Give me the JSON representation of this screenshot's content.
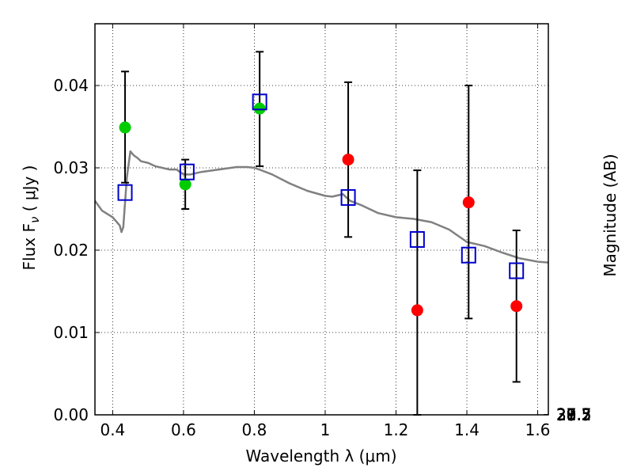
{
  "chart_data": {
    "type": "scatter",
    "xlabel": "Wavelength  λ (μm)",
    "ylabel": "Flux  F",
    "ylabel_subscript": "ν",
    "ylabel_unit": " ( μJy )",
    "ylabel_right": "Magnitude (AB)",
    "xlim": [
      0.35,
      1.63
    ],
    "ylim": [
      0.0,
      0.0475
    ],
    "grid": true,
    "x_ticks": [
      0.4,
      0.6,
      0.8,
      1.0,
      1.2,
      1.4,
      1.6
    ],
    "x_tick_labels": [
      "0.4",
      "0.6",
      "0.8",
      "1",
      "1.2",
      "1.4",
      "1.6"
    ],
    "y_ticks": [
      0.0,
      0.01,
      0.02,
      0.03,
      0.04
    ],
    "y_tick_labels": [
      "0.00",
      "0.01",
      "0.02",
      "0.03",
      "0.04"
    ],
    "right_ticks": [
      "27.3",
      "27.5",
      "27.7",
      "28",
      "28.2",
      "28.5",
      "29",
      "29.5",
      "30",
      "31"
    ],
    "series": [
      {
        "marker": "circle",
        "color": "#00cc00",
        "x": [
          0.435,
          0.605,
          0.815
        ],
        "y": [
          0.0349,
          0.028,
          0.0372
        ],
        "yerr_low": [
          0.0282,
          0.025,
          0.0302
        ],
        "yerr_high": [
          0.0417,
          0.031,
          0.0441
        ]
      },
      {
        "marker": "circle",
        "color": "#ff0000",
        "x": [
          1.065,
          1.26,
          1.405,
          1.54
        ],
        "y": [
          0.031,
          0.0127,
          0.0258,
          0.0132
        ],
        "yerr_low": [
          0.0216,
          0.0,
          0.0117,
          0.004
        ],
        "yerr_high": [
          0.0404,
          0.0297,
          0.04,
          0.0224
        ]
      },
      {
        "marker": "open-square",
        "color": "#0000cc",
        "x": [
          0.435,
          0.61,
          0.815,
          1.065,
          1.26,
          1.405,
          1.54
        ],
        "y": [
          0.027,
          0.0295,
          0.038,
          0.0264,
          0.0213,
          0.0194,
          0.0175
        ]
      },
      {
        "marker": "line",
        "color": "#808080",
        "x": [
          0.35,
          0.37,
          0.4,
          0.42,
          0.425,
          0.43,
          0.44,
          0.45,
          0.46,
          0.47,
          0.48,
          0.5,
          0.52,
          0.54,
          0.56,
          0.58,
          0.6,
          0.62,
          0.65,
          0.7,
          0.75,
          0.78,
          0.8,
          0.82,
          0.85,
          0.9,
          0.95,
          1.0,
          1.02,
          1.05,
          1.07,
          1.1,
          1.15,
          1.2,
          1.25,
          1.3,
          1.35,
          1.4,
          1.45,
          1.5,
          1.55,
          1.6,
          1.63
        ],
        "y": [
          0.026,
          0.0248,
          0.024,
          0.023,
          0.0222,
          0.0228,
          0.0288,
          0.032,
          0.0315,
          0.0312,
          0.0308,
          0.0306,
          0.0302,
          0.03,
          0.0298,
          0.0298,
          0.0292,
          0.0292,
          0.0295,
          0.0298,
          0.0301,
          0.0301,
          0.03,
          0.0297,
          0.0292,
          0.0281,
          0.0272,
          0.0266,
          0.0265,
          0.0268,
          0.026,
          0.0255,
          0.0245,
          0.024,
          0.0238,
          0.0234,
          0.0225,
          0.021,
          0.0205,
          0.0197,
          0.019,
          0.0186,
          0.0185
        ]
      }
    ]
  }
}
